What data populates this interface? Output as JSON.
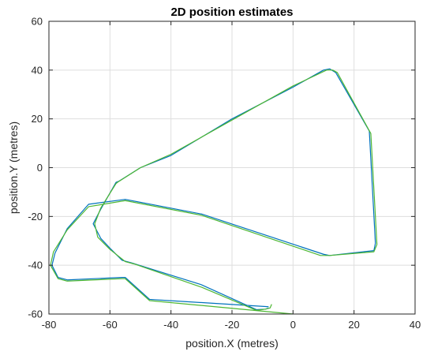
{
  "chart_data": {
    "type": "line",
    "title": "2D position estimates",
    "xlabel": "position.X (metres)",
    "ylabel": "position.Y (metres)",
    "xlim": [
      -80,
      40
    ],
    "ylim": [
      -60,
      60
    ],
    "xticks": [
      -80,
      -60,
      -40,
      -20,
      0,
      20,
      40
    ],
    "yticks": [
      -60,
      -40,
      -20,
      0,
      20,
      40,
      60
    ],
    "grid": true,
    "series": [
      {
        "color": "#0072BD",
        "x": [
          -8,
          -9,
          -12,
          -30,
          -53,
          -56,
          -60,
          -63,
          -65.5,
          -63,
          -58,
          -57,
          -50,
          -40,
          -20,
          0,
          10,
          12,
          14,
          25,
          27,
          26.5,
          12,
          10,
          -30,
          -55,
          -67,
          -74,
          -78,
          -79,
          -77,
          -74,
          -56,
          -55,
          -47,
          -8
        ],
        "y": [
          -57.5,
          -58,
          -58.2,
          -48,
          -39,
          -38,
          -33,
          -29,
          -23,
          -17,
          -6,
          -5.5,
          0,
          5,
          20,
          33,
          40,
          40.5,
          39,
          15,
          -31,
          -34,
          -36,
          -35.5,
          -19,
          -13,
          -15,
          -25,
          -35,
          -40,
          -45,
          -46,
          -45,
          -45,
          -54,
          -57
        ]
      },
      {
        "color": "#4DB733",
        "x": [
          -7,
          -7.5,
          -9,
          -12,
          -30,
          -52,
          -55,
          -60,
          -64,
          -65,
          -63,
          -58,
          -57.5,
          -50,
          -40,
          -20,
          0,
          11,
          13,
          14.5,
          25.5,
          27.5,
          26.5,
          12,
          9,
          -30,
          -55,
          -67,
          -74,
          -78.5,
          -79.5,
          -77,
          -74,
          -56,
          -55,
          -47,
          0
        ],
        "y": [
          -56,
          -57.5,
          -58,
          -58.5,
          -49,
          -39.5,
          -38.5,
          -33.5,
          -28.5,
          -23,
          -16.5,
          -6.5,
          -6,
          0,
          5.5,
          19.5,
          33.5,
          40,
          40,
          39,
          14,
          -31.5,
          -34.5,
          -36,
          -36,
          -19.5,
          -13.5,
          -16,
          -25.5,
          -34.5,
          -40,
          -45.5,
          -46.5,
          -45.5,
          -45.5,
          -54.5,
          -60
        ]
      }
    ]
  }
}
